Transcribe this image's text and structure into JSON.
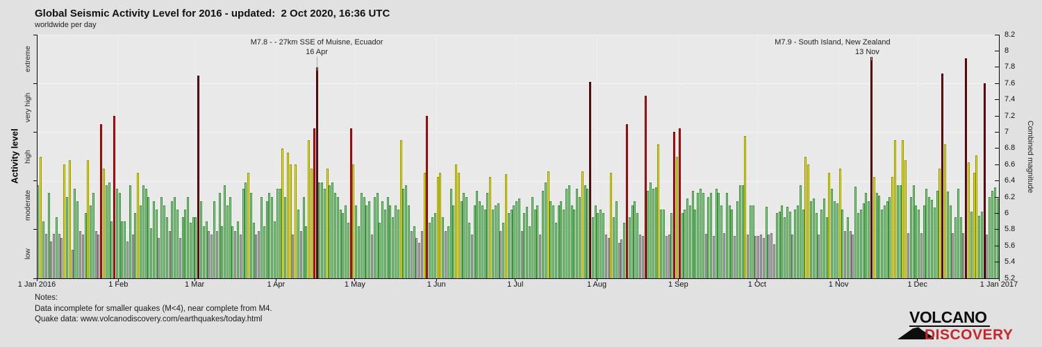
{
  "header": {
    "title": "Global Seismic Activity Level for 2016 - updated:  2 Oct 2020, 16:36 UTC",
    "subtitle": "worldwide per day"
  },
  "chart_data": {
    "type": "bar",
    "title": "Global Seismic Activity Level for 2016",
    "subtitle": "worldwide per day",
    "x_tick_labels": [
      "1 Jan 2016",
      "1 Feb",
      "1 Mar",
      "1 Apr",
      "1 May",
      "1 Jun",
      "1 Jul",
      "1 Aug",
      "1 Sep",
      "1 Oct",
      "1 Nov",
      "1 Dec",
      "1 Jan 2017"
    ],
    "month_day_offsets": [
      0,
      31,
      60,
      91,
      121,
      152,
      182,
      213,
      244,
      274,
      305,
      335,
      366
    ],
    "days_total": 366,
    "y_right_axis": {
      "label": "Combined magnitude",
      "min": 5.2,
      "max": 8.2,
      "tick_step": 0.2,
      "tick_labels": [
        "5.2",
        "5.4",
        "5.6",
        "5.8",
        "6",
        "6.2",
        "6.4",
        "6.6",
        "6.8",
        "7",
        "7.2",
        "7.4",
        "7.6",
        "7.8",
        "8",
        "8.2"
      ]
    },
    "y_left_axis": {
      "label": "Activity level",
      "categories": [
        "low",
        "moderate",
        "high",
        "very high",
        "extreme"
      ],
      "category_span": 0.6
    },
    "levels": [
      {
        "name": "low",
        "min": 5.2,
        "fill": "#b5b5b5",
        "border": "#6f6f6f"
      },
      {
        "name": "moderate",
        "min": 5.8,
        "fill": "#90d890",
        "border": "#3d8b3d"
      },
      {
        "name": "high",
        "min": 6.4,
        "fill": "#f4f414",
        "border": "#8f8f00"
      },
      {
        "name": "very high",
        "min": 7.0,
        "fill": "#cc1a1a",
        "border": "#7a0000"
      },
      {
        "name": "extreme",
        "min": 7.6,
        "fill": "#7c1113",
        "border": "#3a0404"
      }
    ],
    "grid_magnitudes": [
      5.8,
      6.4,
      7.0,
      7.6,
      8.2
    ],
    "values": [
      6.35,
      6.7,
      5.9,
      5.75,
      6.25,
      5.65,
      5.75,
      5.95,
      5.75,
      5.7,
      6.6,
      6.2,
      6.65,
      5.55,
      6.3,
      6.15,
      5.78,
      5.74,
      6.0,
      6.65,
      6.1,
      6.25,
      5.78,
      5.74,
      7.1,
      6.55,
      6.35,
      6.38,
      5.9,
      7.2,
      6.3,
      6.25,
      5.9,
      5.9,
      5.65,
      6.35,
      5.74,
      6.0,
      6.5,
      6.1,
      6.35,
      6.3,
      6.2,
      5.82,
      6.15,
      6.05,
      5.7,
      6.2,
      6.1,
      5.95,
      5.78,
      6.15,
      6.2,
      6.05,
      5.7,
      5.95,
      6.05,
      6.2,
      5.88,
      5.95,
      5.95,
      7.7,
      6.15,
      5.84,
      5.9,
      5.78,
      5.74,
      6.15,
      5.78,
      6.25,
      5.84,
      6.35,
      6.1,
      6.2,
      5.84,
      5.78,
      5.9,
      5.74,
      6.3,
      6.38,
      6.5,
      6.25,
      5.88,
      5.74,
      5.78,
      6.2,
      5.84,
      6.15,
      6.25,
      6.2,
      5.9,
      6.3,
      6.3,
      6.8,
      6.2,
      6.75,
      6.6,
      5.74,
      6.6,
      6.05,
      5.78,
      6.2,
      5.84,
      6.9,
      6.55,
      7.05,
      7.8,
      6.38,
      6.38,
      6.3,
      6.55,
      6.35,
      6.38,
      6.25,
      6.2,
      6.05,
      6.0,
      6.1,
      5.88,
      7.05,
      6.6,
      6.1,
      5.84,
      6.25,
      6.2,
      6.1,
      6.15,
      5.74,
      6.2,
      6.25,
      5.88,
      6.15,
      6.05,
      6.2,
      6.1,
      5.95,
      6.1,
      6.05,
      6.9,
      6.3,
      6.35,
      6.1,
      5.78,
      5.84,
      5.7,
      5.64,
      5.78,
      6.5,
      7.2,
      5.88,
      5.95,
      6.0,
      6.45,
      6.5,
      5.95,
      5.78,
      5.84,
      6.3,
      6.1,
      6.6,
      6.5,
      6.15,
      6.25,
      6.2,
      5.88,
      5.74,
      6.1,
      6.28,
      6.15,
      6.1,
      6.05,
      6.25,
      6.45,
      6.05,
      6.1,
      6.12,
      5.78,
      5.88,
      6.48,
      6.0,
      6.05,
      6.1,
      6.15,
      6.18,
      5.78,
      6.0,
      6.08,
      5.84,
      6.2,
      6.05,
      6.1,
      5.74,
      6.28,
      6.38,
      6.52,
      6.15,
      6.1,
      5.88,
      6.1,
      6.15,
      6.05,
      6.3,
      6.35,
      6.1,
      6.05,
      6.3,
      6.2,
      6.52,
      6.35,
      6.3,
      7.62,
      5.95,
      6.1,
      6.0,
      6.05,
      6.0,
      5.74,
      5.7,
      6.5,
      5.95,
      6.15,
      5.64,
      5.68,
      5.88,
      7.1,
      5.95,
      6.1,
      6.15,
      6.0,
      5.74,
      5.72,
      7.45,
      6.28,
      6.38,
      6.3,
      6.32,
      6.85,
      6.05,
      6.05,
      5.72,
      5.74,
      6.0,
      7.0,
      6.7,
      7.05,
      6.0,
      6.05,
      6.18,
      6.1,
      6.28,
      6.05,
      6.25,
      6.3,
      6.25,
      5.75,
      6.2,
      6.25,
      5.72,
      6.3,
      6.25,
      6.1,
      5.76,
      6.25,
      6.1,
      6.05,
      5.72,
      6.15,
      6.35,
      6.35,
      6.95,
      5.74,
      6.1,
      6.1,
      5.72,
      5.72,
      5.74,
      5.7,
      6.08,
      5.74,
      5.76,
      5.62,
      6.0,
      6.02,
      6.1,
      5.95,
      6.08,
      6.02,
      5.74,
      6.05,
      6.1,
      6.35,
      6.05,
      6.7,
      6.6,
      6.15,
      6.18,
      6.0,
      5.74,
      6.05,
      6.18,
      5.95,
      6.5,
      6.3,
      6.15,
      6.12,
      6.55,
      6.05,
      5.78,
      5.95,
      5.78,
      5.74,
      6.33,
      6.0,
      6.05,
      6.12,
      6.25,
      6.15,
      7.93,
      6.45,
      6.25,
      6.22,
      6.05,
      6.1,
      6.15,
      6.2,
      6.45,
      6.9,
      6.35,
      6.35,
      6.9,
      6.65,
      5.76,
      6.2,
      6.35,
      6.1,
      6.05,
      5.76,
      6.1,
      6.3,
      6.2,
      6.17,
      6.07,
      6.28,
      6.55,
      7.72,
      6.85,
      6.27,
      6.1,
      5.76,
      5.95,
      6.3,
      5.95,
      5.76,
      7.91,
      6.63,
      6.02,
      6.5,
      6.71,
      5.97,
      6.02,
      7.6,
      5.74,
      6.2,
      6.28,
      6.32,
      6.18
    ],
    "annotations": [
      {
        "line1": "M7.8 - - 27km SSE of Muisne, Ecuador",
        "line2": "16 Apr",
        "day_index": 106,
        "value": 7.8,
        "line1_dx": 0,
        "line2_dx": 0
      },
      {
        "line1": "M7.9 - South Island, New Zealand",
        "line2": "13 Nov",
        "day_index": 317,
        "value": 7.93,
        "line1_dx": -56,
        "line2_dx": -6
      }
    ]
  },
  "notes": {
    "heading": "Notes:",
    "line1": "Data incomplete for smaller quakes (M<4), near complete from M4.",
    "line2": "Quake data: www.volcanodiscovery.com/earthquakes/today.html"
  },
  "logo": {
    "word1": "VOLCANO",
    "word2": "DISCOVERY",
    "word2_color": "#c9252c"
  },
  "colors": {
    "page_bg": "#e1e1e1",
    "plot_bg": "#e9e9e9",
    "grid": "#f5f5f5",
    "axis": "#000000",
    "text": "#1a1a1a"
  }
}
